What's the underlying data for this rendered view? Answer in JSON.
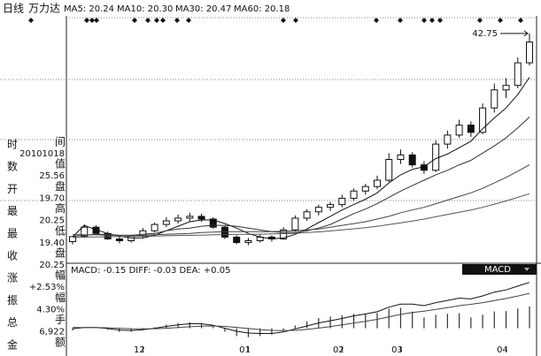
{
  "header": {
    "period": "日线",
    "stock": "万力达",
    "ma": [
      "MA5: 20.24",
      "MA10: 20.30",
      "MA30: 20.47",
      "MA60: 20.18"
    ]
  },
  "info": [
    {
      "left": "时",
      "right": "间",
      "value": "20101018"
    },
    {
      "left": "数",
      "right": "值",
      "value": "25.56"
    },
    {
      "left": "开",
      "right": "盘",
      "value": "19.70"
    },
    {
      "left": "最",
      "right": "高",
      "value": "20.25"
    },
    {
      "left": "最",
      "right": "低",
      "value": "19.40"
    },
    {
      "left": "收",
      "right": "盘",
      "value": "20.25"
    },
    {
      "left": "涨",
      "right": "幅",
      "value": "+2.53%"
    },
    {
      "left": "振",
      "right": "幅",
      "value": "4.30%"
    },
    {
      "left": "总",
      "right": "手",
      "value": "6,922"
    },
    {
      "left": "金",
      "right": "额"
    }
  ],
  "macd_header": "MACD: -0.15 DIFF: -0.03 DEA: +0.05",
  "macd_button": "MACD",
  "chart_data": [
    {
      "type": "candlestick",
      "categories": [
        null,
        null,
        null,
        null,
        null,
        null,
        "12",
        null,
        null,
        null,
        null,
        null,
        null,
        null,
        null,
        "01",
        null,
        null,
        null,
        null,
        null,
        null,
        null,
        "02",
        null,
        null,
        null,
        null,
        "03",
        null,
        null,
        null,
        null,
        null,
        null,
        null,
        null,
        "04",
        null,
        null
      ],
      "open": [
        19.7,
        20.3,
        21.3,
        20.6,
        20.0,
        19.8,
        20.3,
        20.9,
        21.6,
        22.0,
        22.3,
        22.5,
        22.2,
        21.3,
        20.2,
        19.6,
        19.8,
        20.2,
        20.0,
        21.0,
        22.3,
        23.0,
        23.5,
        23.8,
        24.5,
        25.3,
        25.8,
        26.5,
        28.8,
        29.3,
        28.2,
        27.6,
        30.5,
        31.5,
        32.6,
        31.8,
        34.5,
        36.5,
        37.0,
        39.5
      ],
      "high": [
        20.25,
        21.6,
        21.5,
        20.8,
        20.3,
        20.4,
        21.2,
        21.8,
        22.4,
        22.7,
        22.9,
        22.8,
        22.4,
        21.5,
        20.4,
        20.1,
        20.5,
        20.4,
        21.3,
        22.6,
        23.3,
        23.8,
        24.1,
        24.9,
        25.6,
        26.1,
        27.0,
        29.5,
        29.9,
        29.6,
        28.6,
        30.9,
        32.0,
        33.2,
        33.0,
        35.0,
        37.2,
        37.8,
        40.1,
        42.75
      ],
      "low": [
        19.4,
        20.1,
        20.4,
        19.9,
        19.5,
        19.6,
        20.1,
        20.7,
        21.3,
        21.7,
        21.9,
        21.9,
        21.1,
        20.0,
        19.4,
        19.3,
        19.6,
        19.7,
        19.9,
        20.8,
        22.0,
        22.6,
        23.1,
        23.5,
        24.2,
        24.9,
        25.5,
        26.3,
        28.3,
        27.9,
        27.2,
        27.4,
        30.0,
        31.2,
        31.3,
        31.6,
        34.0,
        35.6,
        36.7,
        39.2
      ],
      "close": [
        20.25,
        21.3,
        20.6,
        20.0,
        19.8,
        20.3,
        20.9,
        21.6,
        22.0,
        22.3,
        22.5,
        22.2,
        21.3,
        20.2,
        19.6,
        19.8,
        20.2,
        20.0,
        21.0,
        22.3,
        23.0,
        23.5,
        23.8,
        24.5,
        25.3,
        25.8,
        26.5,
        28.8,
        29.3,
        28.2,
        27.6,
        30.5,
        31.5,
        32.6,
        31.8,
        34.5,
        36.5,
        37.0,
        39.5,
        41.8
      ],
      "series": [
        {
          "name": "MA5",
          "color": "#111111",
          "values": [
            20.24,
            21.5,
            21.0,
            20.6,
            20.3,
            20.1,
            20.1,
            20.4,
            20.9,
            21.4,
            21.9,
            22.1,
            22.1,
            21.7,
            21.2,
            20.6,
            20.2,
            20.0,
            20.1,
            20.5,
            21.1,
            21.8,
            22.5,
            23.2,
            23.8,
            24.4,
            25.1,
            26.2,
            27.1,
            27.7,
            28.0,
            28.9,
            29.4,
            30.1,
            30.8,
            32.2,
            33.4,
            34.5,
            36.0,
            37.9
          ]
        },
        {
          "name": "MA10",
          "color": "#333333",
          "values": [
            20.3,
            20.4,
            20.5,
            20.5,
            20.4,
            20.4,
            20.5,
            20.6,
            20.9,
            21.1,
            21.2,
            21.4,
            21.5,
            21.5,
            21.4,
            21.2,
            21.0,
            20.8,
            20.7,
            20.7,
            20.9,
            21.2,
            21.6,
            22.2,
            22.8,
            23.3,
            23.9,
            24.6,
            25.3,
            25.9,
            26.5,
            27.1,
            27.6,
            28.2,
            28.7,
            29.5,
            30.3,
            31.2,
            32.3,
            33.5
          ]
        },
        {
          "name": "MA30",
          "color": "#444444",
          "values": [
            20.47,
            20.45,
            20.45,
            20.4,
            20.4,
            20.4,
            20.4,
            20.45,
            20.5,
            20.55,
            20.6,
            20.7,
            20.75,
            20.8,
            20.8,
            20.8,
            20.8,
            20.8,
            20.85,
            20.9,
            21.0,
            21.1,
            21.3,
            21.5,
            21.7,
            21.9,
            22.2,
            22.5,
            22.9,
            23.2,
            23.5,
            23.9,
            24.3,
            24.7,
            25.1,
            25.6,
            26.2,
            26.8,
            27.5,
            28.2
          ]
        },
        {
          "name": "MA60",
          "color": "#555555",
          "values": [
            20.18,
            20.2,
            20.22,
            20.24,
            20.26,
            20.28,
            20.3,
            20.32,
            20.35,
            20.38,
            20.4,
            20.42,
            20.45,
            20.47,
            20.5,
            20.5,
            20.52,
            20.55,
            20.58,
            20.62,
            20.7,
            20.78,
            20.88,
            21.0,
            21.12,
            21.25,
            21.4,
            21.58,
            21.78,
            21.98,
            22.2,
            22.45,
            22.7,
            22.95,
            23.2,
            23.5,
            23.85,
            24.2,
            24.6,
            25.0
          ]
        }
      ],
      "max_label": "42.75",
      "ylim": [
        17.5,
        44.5
      ]
    },
    {
      "type": "macd",
      "values": [
        -0.15,
        0.0,
        0.0,
        -0.1,
        -0.24,
        -0.24,
        -0.12,
        0.06,
        0.24,
        0.34,
        0.4,
        0.32,
        0.1,
        -0.24,
        -0.52,
        -0.6,
        -0.52,
        -0.42,
        -0.18,
        0.18,
        0.46,
        0.68,
        0.78,
        0.86,
        0.96,
        0.98,
        1.02,
        1.3,
        1.36,
        1.1,
        0.72,
        0.9,
        0.96,
        1.0,
        0.72,
        0.9,
        1.12,
        1.14,
        1.32,
        1.46
      ],
      "series": [
        {
          "name": "DIFF",
          "color": "#111111",
          "values": [
            -0.03,
            0.05,
            0.05,
            -0.02,
            -0.12,
            -0.15,
            -0.1,
            0.0,
            0.12,
            0.22,
            0.3,
            0.3,
            0.2,
            0.0,
            -0.2,
            -0.32,
            -0.35,
            -0.35,
            -0.25,
            -0.05,
            0.15,
            0.35,
            0.5,
            0.65,
            0.82,
            0.95,
            1.1,
            1.4,
            1.6,
            1.6,
            1.5,
            1.7,
            1.85,
            2.0,
            1.95,
            2.15,
            2.4,
            2.55,
            2.8,
            3.05
          ]
        },
        {
          "name": "DEA",
          "color": "#444444",
          "values": [
            0.05,
            0.05,
            0.05,
            0.03,
            0.0,
            -0.03,
            -0.04,
            -0.03,
            0.0,
            0.05,
            0.1,
            0.14,
            0.15,
            0.12,
            0.06,
            -0.02,
            -0.09,
            -0.14,
            -0.16,
            -0.14,
            -0.08,
            0.01,
            0.11,
            0.22,
            0.34,
            0.46,
            0.59,
            0.75,
            0.92,
            1.05,
            1.14,
            1.25,
            1.37,
            1.5,
            1.59,
            1.7,
            1.84,
            1.98,
            2.14,
            2.32
          ]
        }
      ],
      "ylim": [
        -1.2,
        3.5
      ]
    }
  ]
}
